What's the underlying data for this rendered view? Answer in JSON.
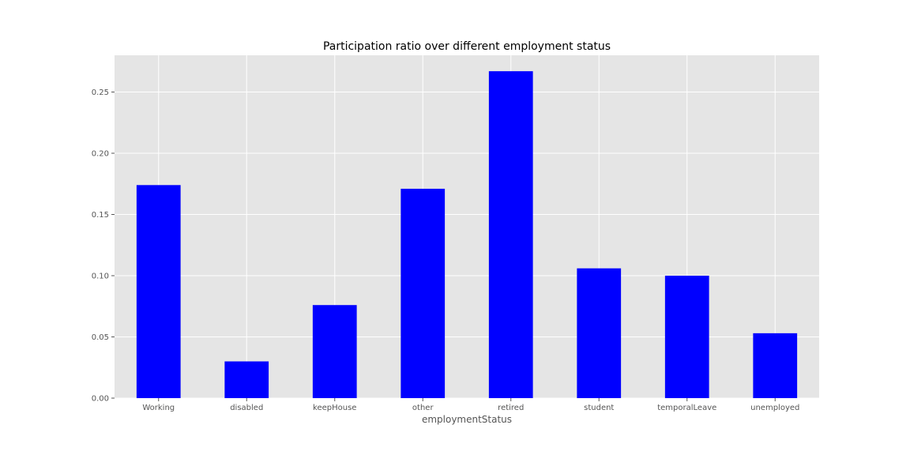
{
  "chart_data": {
    "type": "bar",
    "title": "Participation ratio over different employment status",
    "xlabel": "employmentStatus",
    "ylabel": "",
    "categories": [
      "Working",
      "disabled",
      "keepHouse",
      "other",
      "retired",
      "student",
      "temporalLeave",
      "unemployed"
    ],
    "values": [
      0.174,
      0.03,
      0.076,
      0.171,
      0.267,
      0.106,
      0.1,
      0.053
    ],
    "ylim": [
      0,
      0.28
    ],
    "yticks": [
      "0.00",
      "0.05",
      "0.10",
      "0.15",
      "0.20",
      "0.25"
    ],
    "grid": true,
    "legend": "none",
    "colors": {
      "bar": "#0000ff",
      "plot_background": "#e5e5e5",
      "grid": "#ffffff"
    }
  }
}
